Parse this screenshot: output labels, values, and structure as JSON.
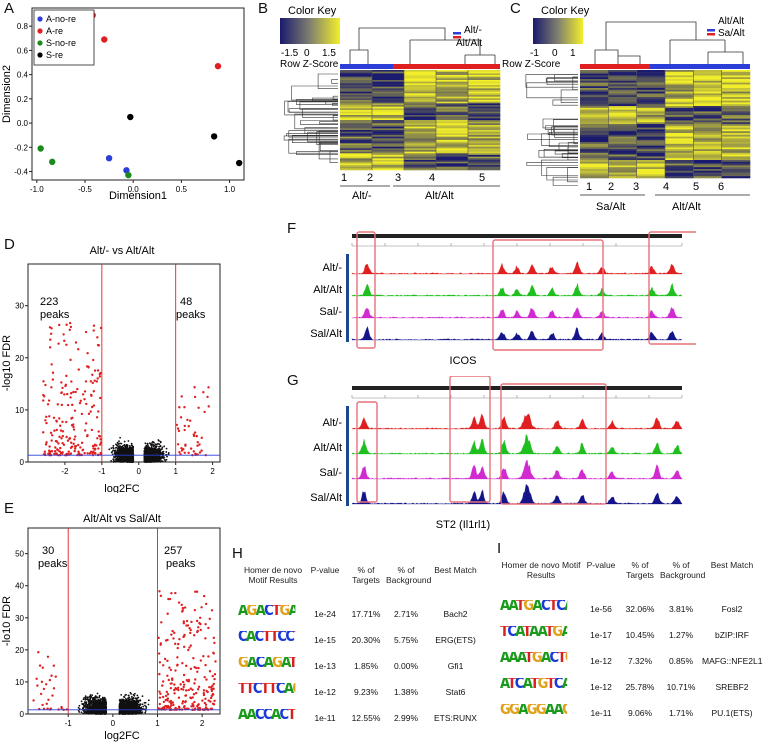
{
  "panels": {
    "A": {
      "letter": "A",
      "xlabel": "Dimension1",
      "ylabel": "Dimension2",
      "legend": [
        {
          "label": "A-no-re",
          "color": "#2b3fd8"
        },
        {
          "label": "A-re",
          "color": "#e02020"
        },
        {
          "label": "S-no-re",
          "color": "#1a8a1a"
        },
        {
          "label": "S-re",
          "color": "#000000"
        }
      ],
      "xticks": [
        "-1.0",
        "-0.5",
        "0.0",
        "0.5",
        "1.0"
      ],
      "yticks": [
        "0.8",
        "0.6",
        "0.4",
        "0.2",
        "0.0",
        "-0.2",
        "-0.4"
      ]
    },
    "B": {
      "letter": "B",
      "color_key_title": "Color Key",
      "key_ticks": [
        "-1.5",
        "0",
        "1.5"
      ],
      "key_sub": "Row Z-Score",
      "legend": [
        "Alt/-",
        "Alt/Alt"
      ],
      "col_numbers": [
        "1",
        "2",
        "3",
        "4",
        "5"
      ],
      "groups": [
        "Alt/-",
        "Alt/Alt"
      ]
    },
    "C": {
      "letter": "C",
      "color_key_title": "Color Key",
      "key_ticks": [
        "-1",
        "0",
        "1"
      ],
      "key_sub": "Row Z-Score",
      "legend": [
        "Alt/Alt",
        "Sa/Alt"
      ],
      "col_numbers": [
        "1",
        "2",
        "3",
        "4",
        "5",
        "6"
      ],
      "groups": [
        "Sa/Alt",
        "Alt/Alt"
      ]
    },
    "D": {
      "letter": "D",
      "title": "Alt/- vs Alt/Alt",
      "left_count": "223",
      "right_count": "48",
      "peaks_word": "peaks",
      "xlabel": "log2FC",
      "ylabel": "-log10 FDR",
      "xticks": [
        "-2",
        "-1",
        "0",
        "1",
        "2"
      ],
      "yticks": [
        "0",
        "10",
        "20",
        "30"
      ]
    },
    "E": {
      "letter": "E",
      "title": "Alt/Alt vs Sal/Alt",
      "left_count": "30",
      "right_count": "257",
      "peaks_word": "peaks",
      "xlabel": "log2FC",
      "ylabel": "-lo10 FDR",
      "xticks": [
        "-1",
        "0",
        "1",
        "2"
      ],
      "yticks": [
        "0",
        "10",
        "20",
        "30",
        "40",
        "50"
      ]
    },
    "F": {
      "letter": "F",
      "tracks": [
        "Alt/-",
        "Alt/Alt",
        "Sal/-",
        "Sal/Alt"
      ],
      "gene": "ICOS"
    },
    "G": {
      "letter": "G",
      "tracks": [
        "Alt/-",
        "Alt/Alt",
        "Sal/-",
        "Sal/Alt"
      ],
      "gene": "ST2 (Il1rl1)"
    },
    "H": {
      "letter": "H",
      "headers": [
        "Homer de novo Motif Results",
        "P-value",
        "% of Targets",
        "% of Background",
        "Best Match"
      ],
      "rows": [
        {
          "motif": "AGACTGAGTCA",
          "p": "1e-24",
          "targets": "17.71%",
          "background": "2.71%",
          "match": "Bach2"
        },
        {
          "motif": "CACTTCCTGT",
          "p": "1e-15",
          "targets": "20.30%",
          "background": "5.75%",
          "match": "ERG(ETS)"
        },
        {
          "motif": "GACAGATTAGA",
          "p": "1e-13",
          "targets": "1.85%",
          "background": "0.00%",
          "match": "Gfi1"
        },
        {
          "motif": "TTCTTCAGAA",
          "p": "1e-12",
          "targets": "9.23%",
          "background": "1.38%",
          "match": "Stat6"
        },
        {
          "motif": "AACCACTGCCTG",
          "p": "1e-11",
          "targets": "12.55%",
          "background": "2.99%",
          "match": "ETS:RUNX"
        }
      ]
    },
    "I": {
      "letter": "I",
      "headers": [
        "Homer de novo Motif Results",
        "P-value",
        "% of Targets",
        "% of Background",
        "Best Match"
      ],
      "rows": [
        {
          "motif": "AATGACTCATCC",
          "p": "1e-56",
          "targets": "32.06%",
          "background": "3.81%",
          "match": "Fosl2"
        },
        {
          "motif": "TCATAATGAAAC",
          "p": "1e-17",
          "targets": "10.45%",
          "background": "1.27%",
          "match": "bZIP:IRF"
        },
        {
          "motif": "AAATGACTGG",
          "p": "1e-12",
          "targets": "7.32%",
          "background": "0.85%",
          "match": "MAFG::NFE2L1"
        },
        {
          "motif": "ATCATGTCAC",
          "p": "1e-12",
          "targets": "25.78%",
          "background": "10.71%",
          "match": "SREBF2"
        },
        {
          "motif": "GGAGGAAGTG",
          "p": "1e-11",
          "targets": "9.06%",
          "background": "1.71%",
          "match": "PU.1(ETS)"
        }
      ]
    }
  },
  "chart_data": [
    {
      "type": "scatter",
      "panel": "A",
      "xlabel": "Dimension1",
      "ylabel": "Dimension2",
      "xlim": [
        -1.05,
        1.15
      ],
      "ylim": [
        -0.47,
        0.95
      ],
      "series": [
        {
          "name": "A-no-re",
          "color": "#2b3fd8",
          "points": [
            [
              -0.25,
              -0.29
            ],
            [
              -0.07,
              -0.39
            ]
          ]
        },
        {
          "name": "A-re",
          "color": "#e02020",
          "points": [
            [
              -0.42,
              0.89
            ],
            [
              -0.3,
              0.69
            ],
            [
              0.88,
              0.47
            ]
          ]
        },
        {
          "name": "S-no-re",
          "color": "#1a8a1a",
          "points": [
            [
              -0.96,
              -0.21
            ],
            [
              -0.84,
              -0.32
            ],
            [
              -0.05,
              -0.43
            ]
          ]
        },
        {
          "name": "S-re",
          "color": "#000000",
          "points": [
            [
              -0.03,
              0.05
            ],
            [
              0.84,
              -0.11
            ],
            [
              1.1,
              -0.33
            ]
          ]
        }
      ]
    },
    {
      "type": "scatter",
      "panel": "D",
      "title": "Alt/- vs Alt/Alt",
      "xlabel": "log2FC",
      "ylabel": "-log10 FDR",
      "xlim": [
        -3,
        2.2
      ],
      "ylim": [
        0,
        38
      ],
      "thresholds_x": [
        -1,
        1
      ],
      "threshold_y": 1.3
    },
    {
      "type": "scatter",
      "panel": "E",
      "title": "Alt/Alt vs Sal/Alt",
      "xlabel": "log2FC",
      "ylabel": "-lo10 FDR",
      "xlim": [
        -1.9,
        2.4
      ],
      "ylim": [
        0,
        58
      ],
      "thresholds_x": [
        -1,
        1
      ],
      "threshold_y": 1.3
    }
  ]
}
